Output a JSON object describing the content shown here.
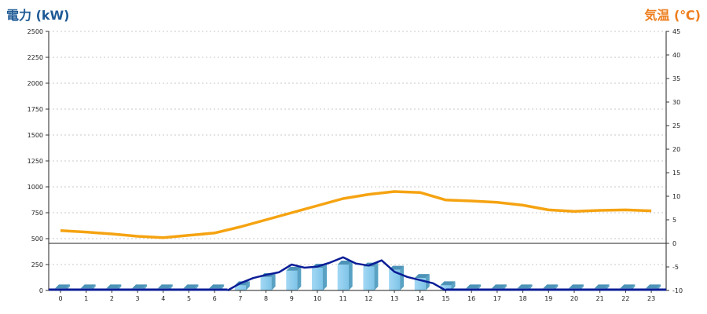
{
  "chart_data": {
    "type": "bar+line",
    "left_axis_title": "電力 (kW)",
    "right_axis_title": "気温 (℃)",
    "x_ticks": [
      "0",
      "1",
      "2",
      "3",
      "4",
      "5",
      "6",
      "7",
      "8",
      "9",
      "10",
      "11",
      "12",
      "13",
      "14",
      "15",
      "16",
      "17",
      "18",
      "19",
      "20",
      "21",
      "22",
      "23"
    ],
    "left_ticks": [
      "0",
      "250",
      "500",
      "750",
      "1000",
      "1250",
      "1500",
      "1750",
      "2000",
      "2250",
      "2500"
    ],
    "right_ticks": [
      "-10",
      "-5",
      "0",
      "5",
      "10",
      "15",
      "20",
      "25",
      "30",
      "35",
      "40",
      "45"
    ],
    "ylim_left": [
      0,
      2500
    ],
    "ylim_right": [
      -10,
      45
    ],
    "grid": true,
    "power_bars": {
      "x": [
        0,
        1,
        2,
        3,
        4,
        5,
        6,
        7,
        8,
        9,
        10,
        11,
        12,
        13,
        14,
        15,
        16,
        17,
        18,
        19,
        20,
        21,
        22,
        23
      ],
      "values": [
        20,
        20,
        20,
        20,
        20,
        20,
        20,
        50,
        130,
        190,
        220,
        250,
        230,
        200,
        120,
        50,
        20,
        20,
        20,
        20,
        20,
        20,
        20,
        20
      ]
    },
    "power_line": {
      "x": [
        6.5,
        7,
        7.5,
        8,
        8.5,
        9,
        9.5,
        10,
        10.5,
        11,
        11.5,
        12,
        12.5,
        13,
        13.5,
        14,
        14.5,
        15
      ],
      "values": [
        0,
        70,
        120,
        150,
        175,
        250,
        220,
        230,
        270,
        320,
        260,
        240,
        290,
        180,
        130,
        100,
        70,
        0
      ]
    },
    "temperature_line": {
      "x": [
        0,
        1,
        2,
        3,
        4,
        5,
        6,
        7,
        8,
        9,
        10,
        11,
        12,
        13,
        14,
        15,
        16,
        17,
        18,
        19,
        20,
        21,
        22,
        23
      ],
      "values": [
        2.7,
        2.4,
        2.0,
        1.5,
        1.2,
        1.7,
        2.2,
        3.5,
        5.0,
        6.5,
        8.0,
        9.5,
        10.4,
        11.0,
        10.8,
        9.2,
        9.0,
        8.7,
        8.1,
        7.1,
        6.8,
        7.0,
        7.1,
        6.9
      ]
    }
  }
}
